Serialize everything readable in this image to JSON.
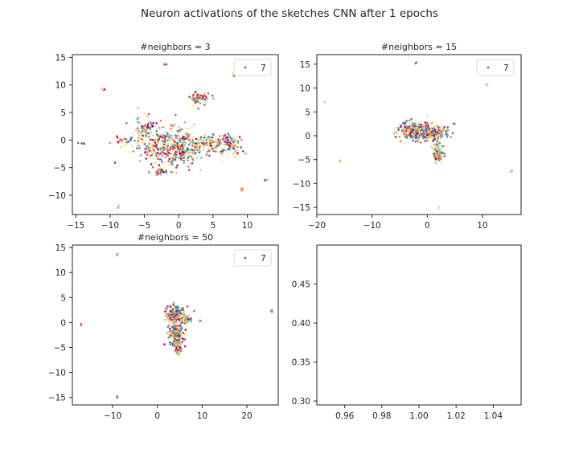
{
  "figure": {
    "title": "Neuron activations of the sketches CNN after 1 epochs",
    "palette": [
      "#9e0142",
      "#d53e4f",
      "#f46d43",
      "#fdae61",
      "#fee08b",
      "#e6f598",
      "#abdda4",
      "#66c2a5",
      "#3288bd",
      "#5e4fa2"
    ]
  },
  "chart_data": [
    {
      "type": "scatter",
      "title": "#neighbors = 3",
      "xlim": [
        -15.5,
        14.5
      ],
      "ylim": [
        -13.5,
        15.5
      ],
      "xticks": [
        -15,
        -10,
        -5,
        0,
        5,
        10
      ],
      "yticks": [
        -10,
        -5,
        0,
        5,
        10,
        15
      ],
      "xticklabels": [
        "−15",
        "−10",
        "−5",
        "0",
        "5",
        "10"
      ],
      "yticklabels": [
        "−10",
        "−5",
        "0",
        "5",
        "10",
        "15"
      ],
      "legend": {
        "label": "7",
        "color": "#5e4fa2",
        "placement": "upper right"
      },
      "clusters": [
        {
          "x": -2.5,
          "y": -1,
          "rx": 4,
          "ry": 4,
          "n": 260
        },
        {
          "x": 0.5,
          "y": -1.5,
          "rx": 3,
          "ry": 3,
          "n": 200
        },
        {
          "x": 4.5,
          "y": -0.5,
          "rx": 2.5,
          "ry": 1.6,
          "n": 110
        },
        {
          "x": 7.5,
          "y": -0.7,
          "rx": 1.8,
          "ry": 1.8,
          "n": 90
        },
        {
          "x": 3.0,
          "y": 7.5,
          "rx": 1.8,
          "ry": 1.1,
          "n": 70
        },
        {
          "x": -5,
          "y": 2,
          "rx": 1.2,
          "ry": 2.2,
          "n": 70
        },
        {
          "x": -8,
          "y": -0.2,
          "rx": 1.3,
          "ry": 0.8,
          "n": 25
        },
        {
          "x": -2.5,
          "y": -5.8,
          "rx": 1.2,
          "ry": 0.7,
          "n": 25
        },
        {
          "x": 8.0,
          "y": 11.8,
          "rx": 0.25,
          "ry": 0.3,
          "n": 7
        },
        {
          "x": -1.8,
          "y": 13.8,
          "rx": 0.3,
          "ry": 0.2,
          "n": 5
        },
        {
          "x": -11.0,
          "y": 9.3,
          "rx": 0.3,
          "ry": 0.2,
          "n": 6
        },
        {
          "x": -14.0,
          "y": -0.6,
          "rx": 0.4,
          "ry": 0.15,
          "n": 5
        },
        {
          "x": -8.8,
          "y": -12.0,
          "rx": 0.2,
          "ry": 0.2,
          "n": 5
        },
        {
          "x": 9.3,
          "y": -8.9,
          "rx": 0.2,
          "ry": 0.3,
          "n": 5
        },
        {
          "x": 12.8,
          "y": -7.3,
          "rx": 0.3,
          "ry": 0.2,
          "n": 5
        },
        {
          "x": 9.7,
          "y": -2.5,
          "rx": 0.2,
          "ry": 0.2,
          "n": 3
        }
      ]
    },
    {
      "type": "scatter",
      "title": "#neighbors = 15",
      "xlim": [
        -20,
        17
      ],
      "ylim": [
        -16.5,
        17
      ],
      "xticks": [
        -20,
        -10,
        0,
        10
      ],
      "yticks": [
        -15,
        -10,
        -5,
        0,
        5,
        10,
        15
      ],
      "xticklabels": [
        "−20",
        "−10",
        "0",
        "10"
      ],
      "yticklabels": [
        "−15",
        "−10",
        "−5",
        "0",
        "5",
        "10",
        "15"
      ],
      "legend": {
        "label": "7",
        "color": "#5e4fa2",
        "placement": "upper right"
      },
      "clusters": [
        {
          "x": -2,
          "y": 1.0,
          "rx": 3,
          "ry": 1.8,
          "n": 300
        },
        {
          "x": 1.5,
          "y": 0.5,
          "rx": 2,
          "ry": 1.5,
          "n": 150
        },
        {
          "x": 2,
          "y": -3.5,
          "rx": 0.9,
          "ry": 2.2,
          "n": 110
        },
        {
          "x": 4.8,
          "y": 2.5,
          "rx": 0.3,
          "ry": 0.2,
          "n": 5
        },
        {
          "x": -2.0,
          "y": 15.3,
          "rx": 0.2,
          "ry": 0.2,
          "n": 4
        },
        {
          "x": 10.8,
          "y": 10.6,
          "rx": 0.2,
          "ry": 0.2,
          "n": 4
        },
        {
          "x": -18.6,
          "y": 7.0,
          "rx": 0.1,
          "ry": 0.1,
          "n": 2
        },
        {
          "x": -15.8,
          "y": -5.3,
          "rx": 0.2,
          "ry": 0.3,
          "n": 4
        },
        {
          "x": 15.2,
          "y": -7.5,
          "rx": 0.2,
          "ry": 0.2,
          "n": 4
        },
        {
          "x": 2.2,
          "y": -15.0,
          "rx": 0.15,
          "ry": 0.2,
          "n": 3
        }
      ]
    },
    {
      "type": "scatter",
      "title": "#neighbors = 50",
      "xlim": [
        -19,
        27
      ],
      "ylim": [
        -16.5,
        15.5
      ],
      "xticks": [
        -10,
        0,
        10,
        20
      ],
      "yticks": [
        -15,
        -10,
        -5,
        0,
        5,
        10,
        15
      ],
      "xticklabels": [
        "−10",
        "0",
        "10",
        "20"
      ],
      "yticklabels": [
        "−15",
        "−10",
        "−5",
        "0",
        "5",
        "10",
        "15"
      ],
      "legend": {
        "label": "7",
        "color": "#5e4fa2",
        "placement": "upper right"
      },
      "clusters": [
        {
          "x": 4.0,
          "y": 1.5,
          "rx": 2.2,
          "ry": 2,
          "n": 200
        },
        {
          "x": 4.3,
          "y": -2.5,
          "rx": 1.6,
          "ry": 2.2,
          "n": 200
        },
        {
          "x": 4.6,
          "y": -5.3,
          "rx": 0.8,
          "ry": 1.2,
          "n": 70
        },
        {
          "x": 6.5,
          "y": 0.5,
          "rx": 1.0,
          "ry": 1.0,
          "n": 40
        },
        {
          "x": 9.5,
          "y": 0.4,
          "rx": 0.3,
          "ry": 0.2,
          "n": 4
        },
        {
          "x": -9.0,
          "y": 13.6,
          "rx": 0.2,
          "ry": 0.2,
          "n": 4
        },
        {
          "x": -17.0,
          "y": -0.4,
          "rx": 0.2,
          "ry": 0.2,
          "n": 4
        },
        {
          "x": 25.5,
          "y": 2.4,
          "rx": 0.2,
          "ry": 0.2,
          "n": 4
        },
        {
          "x": -9.0,
          "y": -14.8,
          "rx": 0.2,
          "ry": 0.2,
          "n": 4
        }
      ]
    },
    {
      "type": "scatter",
      "title": "",
      "xlim": [
        0.945,
        1.055
      ],
      "ylim": [
        0.295,
        0.5
      ],
      "xticks": [
        0.96,
        0.98,
        1.0,
        1.02,
        1.04
      ],
      "yticks": [
        0.3,
        0.35,
        0.4,
        0.45
      ],
      "xticklabels": [
        "0.96",
        "0.98",
        "1.00",
        "1.02",
        "1.04"
      ],
      "yticklabels": [
        "0.30",
        "0.35",
        "0.40",
        "0.45"
      ],
      "clusters": []
    }
  ]
}
